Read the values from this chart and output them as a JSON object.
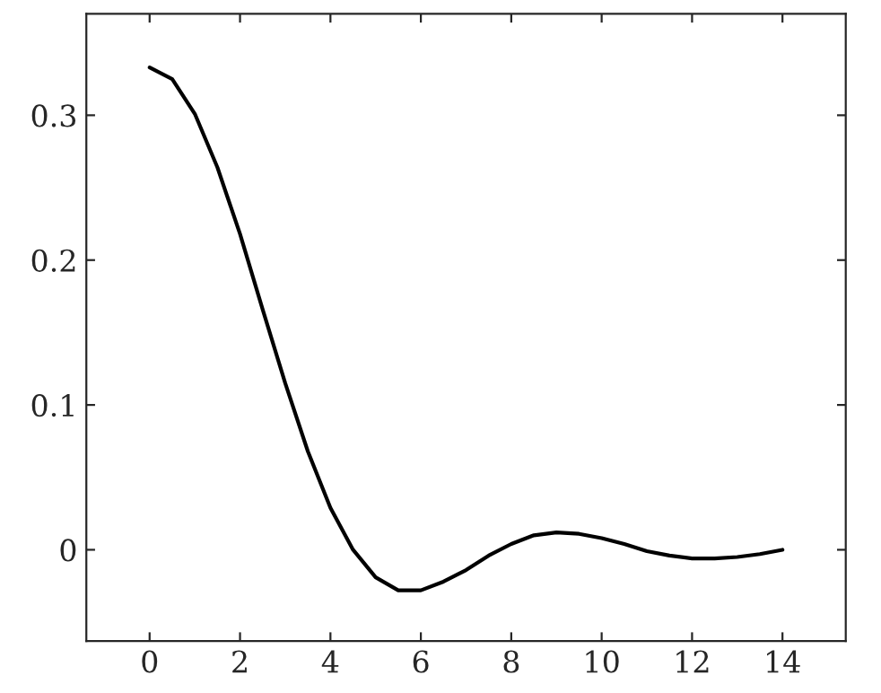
{
  "chart_data": {
    "type": "line",
    "x": [
      0,
      0.5,
      1,
      1.5,
      2,
      2.5,
      3,
      3.5,
      4,
      4.5,
      5,
      5.5,
      6,
      6.5,
      7,
      7.5,
      8,
      8.5,
      9,
      9.5,
      10,
      10.5,
      11,
      11.5,
      12,
      12.5,
      13,
      13.5,
      14
    ],
    "series": [
      {
        "color": "#000000",
        "values": [
          0.333,
          0.325,
          0.301,
          0.264,
          0.218,
          0.166,
          0.115,
          0.068,
          0.029,
          0.0,
          -0.019,
          -0.028,
          -0.028,
          -0.022,
          -0.014,
          -0.004,
          0.004,
          0.01,
          0.012,
          0.011,
          0.008,
          0.004,
          -0.001,
          -0.004,
          -0.006,
          -0.006,
          -0.005,
          -0.003,
          0.0
        ]
      }
    ],
    "xlim": [
      -1.4,
      15.4
    ],
    "ylim": [
      -0.063,
      0.37
    ],
    "xticks": [
      0,
      2,
      4,
      6,
      8,
      10,
      12,
      14
    ],
    "yticks": [
      0,
      0.1,
      0.2,
      0.3
    ],
    "grid": false,
    "marker": "none",
    "line_style": "solid"
  }
}
